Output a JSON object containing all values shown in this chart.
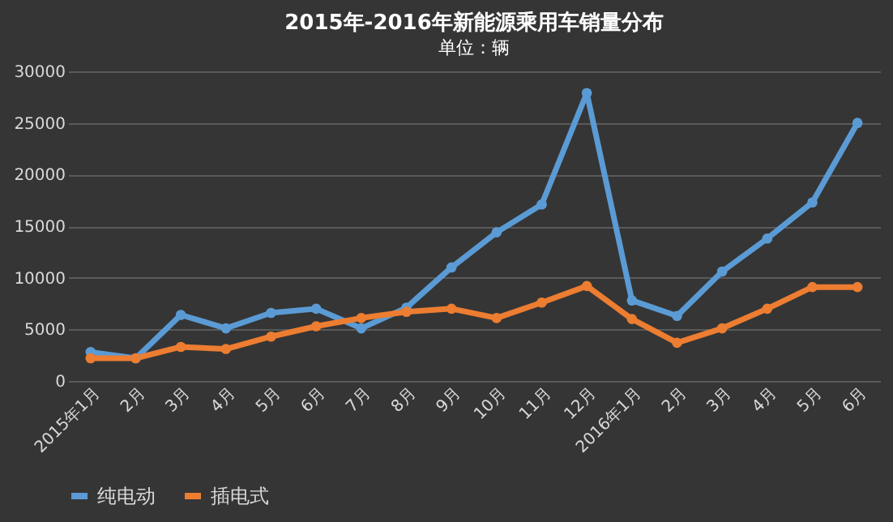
{
  "chart_data": {
    "type": "line",
    "title": "2015年-2016年新能源乘用车销量分布",
    "subtitle": "单位：辆",
    "categories": [
      "2015年1月",
      "2月",
      "3月",
      "4月",
      "5月",
      "6月",
      "7月",
      "8月",
      "9月",
      "10月",
      "11月",
      "12月",
      "2016年1月",
      "2月",
      "3月",
      "4月",
      "5月",
      "6月"
    ],
    "series": [
      {
        "name": "纯电动",
        "color": "#5b9bd5",
        "values": [
          2800,
          2200,
          6400,
          5100,
          6600,
          7000,
          5100,
          7100,
          11000,
          14400,
          17100,
          27900,
          7800,
          6300,
          10600,
          13800,
          17300,
          25000
        ]
      },
      {
        "name": "插电式",
        "color": "#ed7d31",
        "values": [
          2200,
          2200,
          3300,
          3100,
          4300,
          5300,
          6100,
          6700,
          7000,
          6100,
          7600,
          9200,
          6000,
          3700,
          5100,
          7000,
          9100,
          9100
        ]
      }
    ],
    "ylim": [
      0,
      30000
    ],
    "yticks": [
      0,
      5000,
      10000,
      15000,
      20000,
      25000,
      30000
    ],
    "grid": "y",
    "legend": "bottom",
    "marker": "circle",
    "line_style": "solid"
  }
}
